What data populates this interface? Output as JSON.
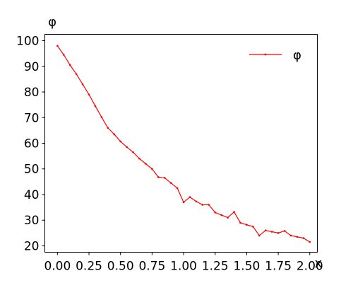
{
  "chart_data": {
    "type": "line",
    "title": "",
    "xlabel": "x",
    "ylabel": "φ",
    "xlim": [
      -0.1,
      2.06
    ],
    "ylim": [
      17.5,
      102.5
    ],
    "x_ticks": [
      0.0,
      0.25,
      0.5,
      0.75,
      1.0,
      1.25,
      1.5,
      1.75,
      2.0
    ],
    "x_tick_labels": [
      "0.00",
      "0.25",
      "0.50",
      "0.75",
      "1.00",
      "1.25",
      "1.50",
      "1.75",
      "2.00"
    ],
    "y_ticks": [
      20,
      30,
      40,
      50,
      60,
      70,
      80,
      90,
      100
    ],
    "y_tick_labels": [
      "20",
      "30",
      "40",
      "50",
      "60",
      "70",
      "80",
      "90",
      "100"
    ],
    "legend_position": "top-right",
    "series": [
      {
        "name": "φ",
        "color": "#ff0000",
        "marker": "dot",
        "x": [
          0.0,
          0.05,
          0.1,
          0.15,
          0.2,
          0.25,
          0.3,
          0.35,
          0.4,
          0.45,
          0.5,
          0.55,
          0.6,
          0.65,
          0.7,
          0.75,
          0.8,
          0.85,
          0.9,
          0.95,
          1.0,
          1.05,
          1.1,
          1.15,
          1.2,
          1.25,
          1.3,
          1.35,
          1.4,
          1.45,
          1.5,
          1.55,
          1.6,
          1.65,
          1.7,
          1.75,
          1.8,
          1.85,
          1.9,
          1.95,
          2.0
        ],
        "values": [
          98.0,
          94.5,
          90.5,
          87.0,
          83.0,
          79.0,
          74.5,
          70.2,
          66.0,
          63.5,
          60.7,
          58.5,
          56.5,
          54.0,
          52.0,
          50.0,
          46.8,
          46.5,
          44.5,
          42.5,
          37.0,
          39.0,
          37.3,
          36.0,
          36.0,
          33.0,
          32.0,
          31.0,
          33.2,
          29.0,
          28.2,
          27.5,
          24.0,
          26.0,
          25.5,
          25.0,
          25.8,
          24.0,
          23.5,
          23.0,
          21.5
        ]
      }
    ]
  }
}
